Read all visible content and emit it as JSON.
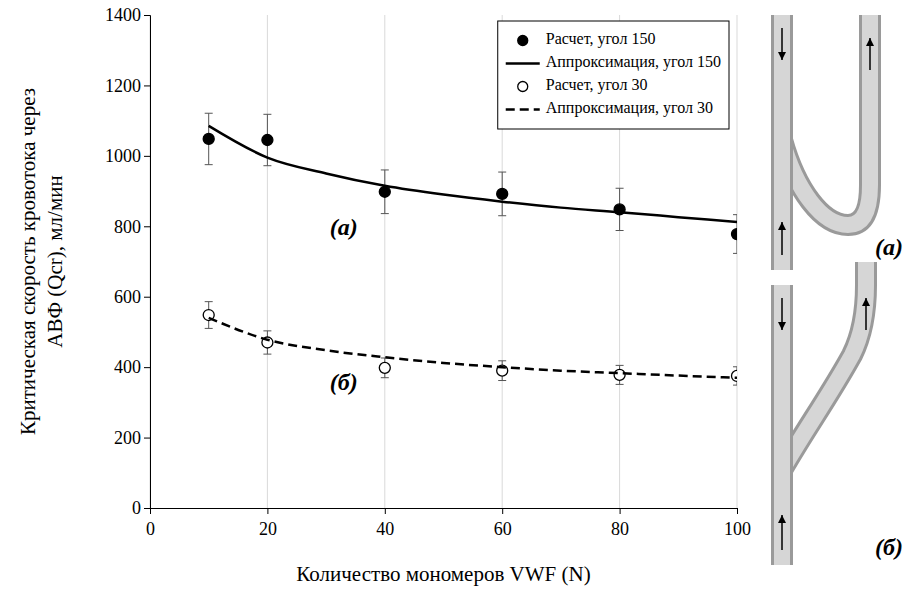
{
  "chart_data": {
    "type": "scatter",
    "x_label": "Количество мономеров VWF (N)",
    "y_label": "Критическая скорость кровотока через АВФ (Qcr), мл/мин",
    "xlim": [
      0,
      100
    ],
    "xticks": [
      0,
      20,
      40,
      60,
      80,
      100
    ],
    "ylim": [
      0,
      1400
    ],
    "yticks": [
      0,
      200,
      400,
      600,
      800,
      1000,
      1200,
      1400
    ],
    "grid": "x",
    "legend": "top-right",
    "series": [
      {
        "name": "Расчет, угол 150",
        "type": "scatter",
        "marker": "circle",
        "color": "#000000",
        "x": [
          10,
          20,
          40,
          60,
          80,
          100
        ],
        "values": [
          1048,
          1045,
          898,
          892,
          848,
          778
        ],
        "errors": [
          73,
          73,
          62,
          62,
          60,
          55
        ]
      },
      {
        "name": "Аппроксимация, угол 150",
        "type": "line",
        "line_style": "solid",
        "color": "#000000",
        "x": [
          10,
          20,
          30,
          40,
          50,
          60,
          70,
          80,
          90,
          100
        ],
        "values": [
          1085,
          995,
          950,
          915,
          890,
          870,
          853,
          840,
          826,
          812
        ]
      },
      {
        "name": "Расчет, угол 30",
        "type": "scatter",
        "marker": "open_circle",
        "color": "#000000",
        "x": [
          10,
          20,
          40,
          60,
          80,
          100
        ],
        "values": [
          548,
          470,
          398,
          390,
          378,
          375
        ],
        "errors": [
          38,
          33,
          28,
          28,
          27,
          26
        ]
      },
      {
        "name": "Аппроксимация, угол 30",
        "type": "line",
        "line_style": "dashed",
        "color": "#000000",
        "x": [
          10,
          20,
          30,
          40,
          50,
          60,
          70,
          80,
          90,
          100
        ],
        "values": [
          540,
          478,
          448,
          428,
          412,
          400,
          390,
          383,
          376,
          370
        ]
      }
    ],
    "annotations": [
      {
        "text": "(а)",
        "x": 33,
        "y": 790
      },
      {
        "text": "(б)",
        "x": 33,
        "y": 350
      }
    ],
    "diagram_labels": [
      "(а)",
      "(б)"
    ]
  }
}
